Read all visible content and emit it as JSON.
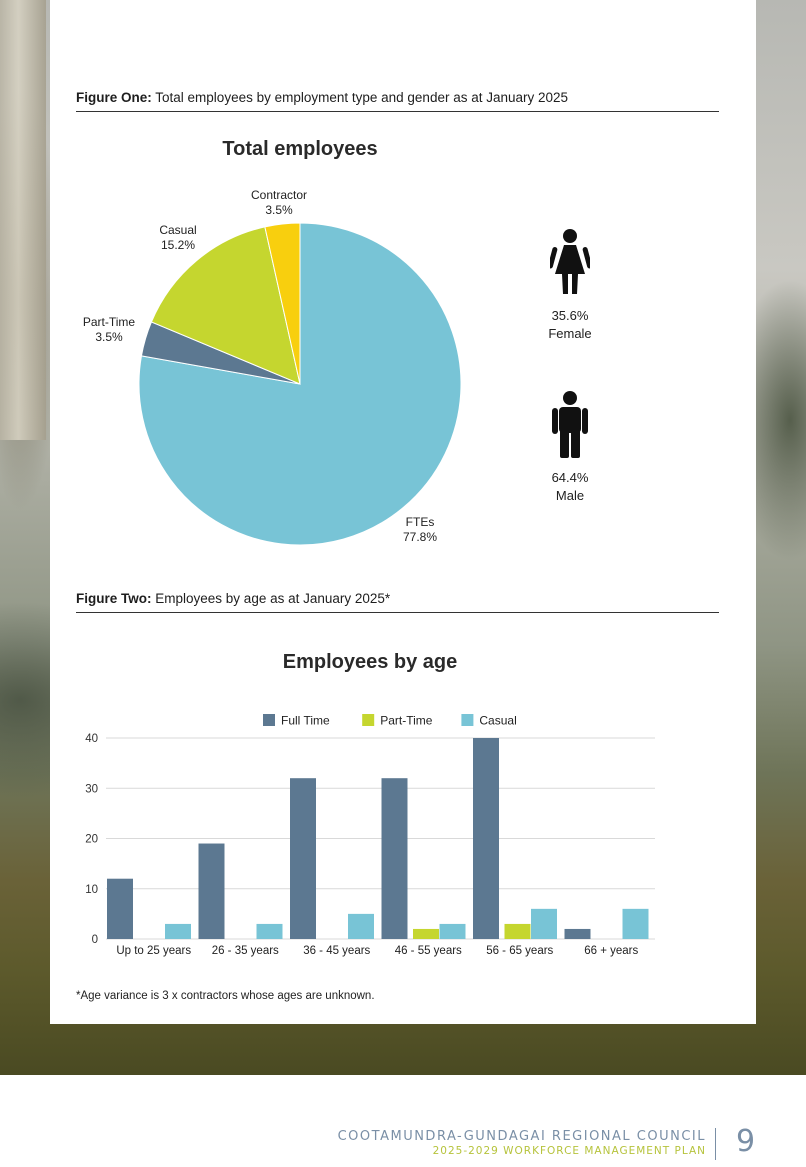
{
  "figure_one": {
    "label": "Figure One:",
    "caption": "Total employees by employment type and gender as at January 2025"
  },
  "figure_two": {
    "label": "Figure Two:",
    "caption": "Employees by age as at January 2025*"
  },
  "gender": {
    "female_pct": "35.6%",
    "female_label": "Female",
    "male_pct": "64.4%",
    "male_label": "Male"
  },
  "footnote": "*Age variance is 3 x contractors whose ages are unknown.",
  "footer": {
    "org": "COOTAMUNDRA-GUNDAGAI REGIONAL COUNCIL",
    "plan": "2025-2029 WORKFORCE MANAGEMENT PLAN",
    "page": "9"
  },
  "colors": {
    "full_time": "#5c7891",
    "part_time": "#c5d62f",
    "casual": "#78c4d6",
    "contractor": "#f8cf0e"
  },
  "chart_data": [
    {
      "type": "pie",
      "title": "Total employees",
      "slices": [
        {
          "label": "FTEs",
          "value": 77.8,
          "display": "77.8%",
          "color": "#78c4d6"
        },
        {
          "label": "Part-Time",
          "value": 3.5,
          "display": "3.5%",
          "color": "#5c7891"
        },
        {
          "label": "Casual",
          "value": 15.2,
          "display": "15.2%",
          "color": "#c5d62f"
        },
        {
          "label": "Contractor",
          "value": 3.5,
          "display": "3.5%",
          "color": "#f8cf0e"
        }
      ]
    },
    {
      "type": "bar",
      "title": "Employees by age",
      "categories": [
        "Up to 25 years",
        "26 - 35 years",
        "36 - 45 years",
        "46 - 55 years",
        "56 - 65 years",
        "66 + years"
      ],
      "series": [
        {
          "name": "Full Time",
          "color": "#5c7891",
          "values": [
            12,
            19,
            32,
            32,
            40,
            2
          ]
        },
        {
          "name": "Part-Time",
          "color": "#c5d62f",
          "values": [
            0,
            0,
            0,
            2,
            3,
            0
          ]
        },
        {
          "name": "Casual",
          "color": "#78c4d6",
          "values": [
            3,
            3,
            5,
            3,
            6,
            6
          ]
        }
      ],
      "ylim": [
        0,
        40
      ],
      "yticks": [
        0,
        10,
        20,
        30,
        40
      ],
      "grid": true,
      "legend": "top"
    }
  ]
}
